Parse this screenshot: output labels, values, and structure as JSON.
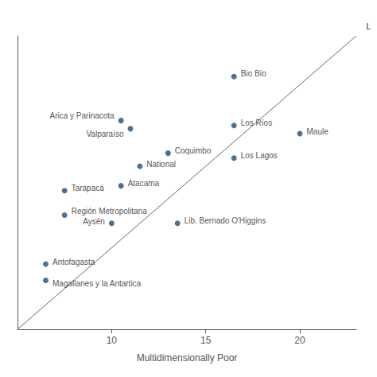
{
  "chart_data": {
    "type": "scatter",
    "xlabel": "Multidimensionally Poor",
    "xlim": [
      5.0,
      23.0
    ],
    "ylim": [
      5.0,
      23.0
    ],
    "xticks": [
      10,
      15,
      20
    ],
    "tick_labels": "x",
    "grid": false,
    "annotations": [
      {
        "text": "L"
      }
    ],
    "series": [
      {
        "type": "scatter",
        "color": "#1f4e79",
        "x": [
          16.5,
          16.5,
          20.0,
          16.5,
          13.0,
          11.5,
          10.5,
          10.5,
          11.0,
          7.5,
          7.5,
          10.0,
          13.5,
          6.5,
          6.5
        ],
        "values": [
          20.5,
          17.5,
          17.0,
          15.5,
          15.8,
          15.0,
          13.8,
          17.8,
          17.3,
          13.5,
          12.0,
          11.5,
          11.5,
          9.0,
          8.0
        ],
        "labels": [
          "Bio Bío",
          "Los Ríos",
          "Maule",
          "Los Lagos",
          "Coquimbo",
          "National",
          "Atacama",
          "Arica y Parinacota",
          "Valparaíso",
          "Tarapacá",
          "Región Metropolitana",
          "Aysén",
          "Lib. Bernado O'Higgins",
          "Antofagasta",
          "Magallanes y la Antartica"
        ]
      },
      {
        "type": "line",
        "color": "#666666",
        "x": [
          5.0,
          23.0
        ],
        "values": [
          5.0,
          23.0
        ]
      }
    ]
  }
}
